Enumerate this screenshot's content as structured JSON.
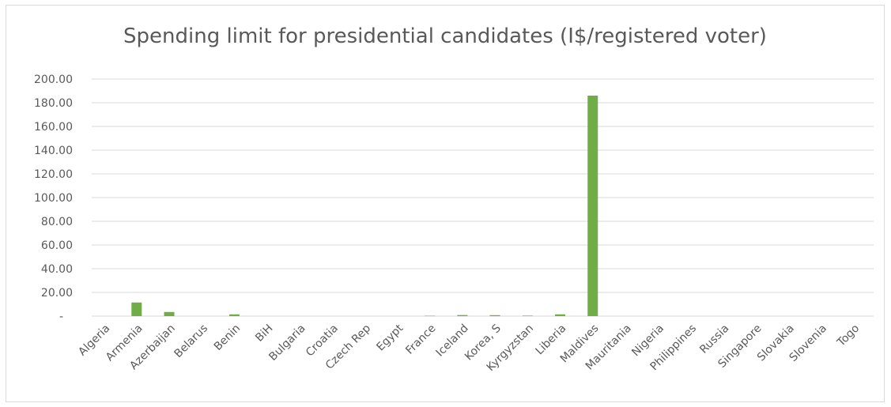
{
  "chart_data": {
    "type": "bar",
    "title": "Spending limit for presidential candidates (I$/registered voter)",
    "xlabel": "",
    "ylabel": "",
    "categories": [
      "Algeria",
      "Armenia",
      "Azerbaijan",
      "Belarus",
      "Benin",
      "BiH",
      "Bulgaria",
      "Croatia",
      "Czech Rep",
      "Egypt",
      "France",
      "Iceland",
      "Korea, S",
      "Kyrgyzstan",
      "Liberia",
      "Maldives",
      "Mauritania",
      "Nigeria",
      "Philippines",
      "Russia",
      "Singapore",
      "Slovakia",
      "Slovenia",
      "Togo"
    ],
    "values": [
      0,
      11.5,
      3.5,
      0,
      1.5,
      0,
      0,
      0,
      0,
      0,
      0.3,
      0.9,
      0.8,
      0.4,
      1.5,
      186,
      0,
      0,
      0,
      0,
      0,
      0,
      0,
      0
    ],
    "ylim": [
      0,
      200
    ],
    "yticks": [
      "-",
      "20.00",
      "40.00",
      "60.00",
      "80.00",
      "100.00",
      "120.00",
      "140.00",
      "160.00",
      "180.00",
      "200.00"
    ],
    "grid": true,
    "legend": "none",
    "color": "#70ad47"
  }
}
